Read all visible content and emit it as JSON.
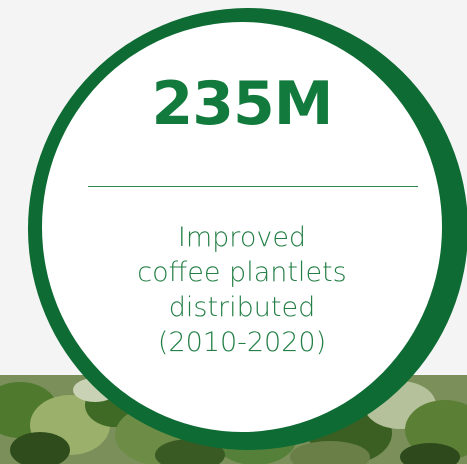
{
  "stat": {
    "value": "235M",
    "lines": [
      "Improved",
      "coffee plantlets",
      "distributed",
      "(2010-2020)"
    ]
  },
  "colors": {
    "ring": "#0d6b33",
    "text": "#137a3d",
    "background": "#f4f4f4"
  }
}
